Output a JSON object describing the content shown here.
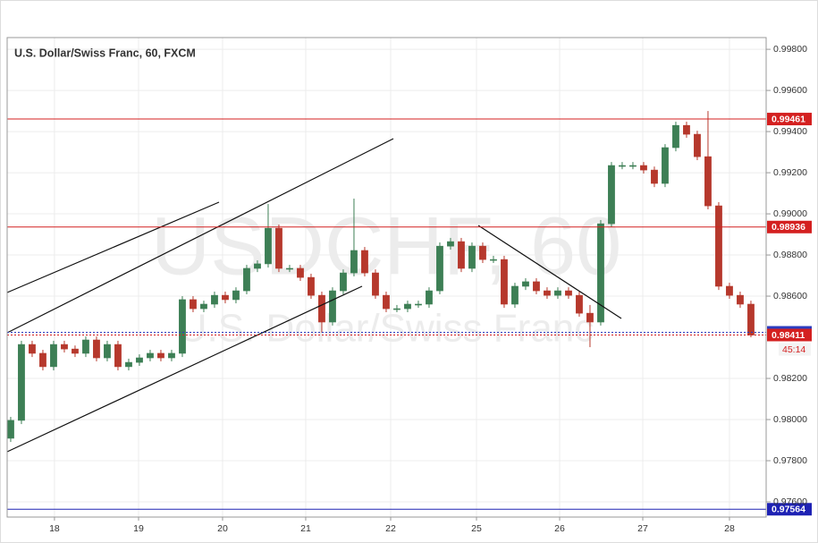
{
  "chart_data": {
    "type": "candlestick",
    "title": "U.S. Dollar/Swiss Franc, 60, FXCM",
    "watermark": {
      "symbol": "USDCHF, 60",
      "name": "U.S. Dollar/Swiss Franc"
    },
    "up_color": "#3d7f55",
    "down_color": "#b6382c",
    "x": [
      0,
      1,
      2,
      3,
      4,
      5,
      6,
      7,
      8,
      9,
      10,
      11,
      12,
      13,
      14,
      15,
      16,
      17,
      18,
      19,
      20,
      21,
      22,
      23,
      24,
      25,
      26,
      27,
      28,
      29,
      30,
      31,
      32,
      33,
      34,
      35,
      36,
      37,
      38,
      39,
      40,
      41,
      42,
      43,
      44,
      45,
      46,
      47,
      48,
      49,
      50,
      51,
      52,
      53,
      54,
      55,
      56,
      57,
      58,
      59,
      60,
      61,
      62,
      63,
      64,
      65,
      66,
      67,
      68,
      69
    ],
    "open": [
      0.97909,
      0.97996,
      0.98365,
      0.98322,
      0.98257,
      0.98365,
      0.98343,
      0.98322,
      0.98387,
      0.983,
      0.98365,
      0.98257,
      0.98278,
      0.983,
      0.98322,
      0.983,
      0.98322,
      0.98583,
      0.98539,
      0.98561,
      0.98604,
      0.98583,
      0.98626,
      0.98735,
      0.98757,
      0.9893,
      0.98735,
      0.98735,
      0.98691,
      0.98604,
      0.98474,
      0.98626,
      0.98713,
      0.98822,
      0.98713,
      0.98604,
      0.98539,
      0.98539,
      0.98561,
      0.98561,
      0.98626,
      0.98843,
      0.98865,
      0.98735,
      0.98843,
      0.98778,
      0.98778,
      0.98561,
      0.98648,
      0.9867,
      0.98626,
      0.98604,
      0.98626,
      0.98604,
      0.98517,
      0.98474,
      0.98952,
      0.99235,
      0.99235,
      0.99235,
      0.99213,
      0.99148,
      0.99322,
      0.9943,
      0.99387,
      0.99278,
      0.99039,
      0.98648,
      0.98604,
      0.98561
    ],
    "high": [
      0.98013,
      0.98383,
      0.98383,
      0.98339,
      0.98383,
      0.98383,
      0.9836,
      0.98404,
      0.98404,
      0.98383,
      0.98383,
      0.98296,
      0.98317,
      0.98339,
      0.98339,
      0.98339,
      0.986,
      0.986,
      0.98578,
      0.98622,
      0.98622,
      0.98643,
      0.98752,
      0.98774,
      0.99048,
      0.98948,
      0.98752,
      0.98752,
      0.98709,
      0.98622,
      0.98643,
      0.9873,
      0.99074,
      0.98839,
      0.9873,
      0.98622,
      0.98557,
      0.98578,
      0.98578,
      0.98643,
      0.98861,
      0.98883,
      0.98883,
      0.98861,
      0.98861,
      0.98796,
      0.98796,
      0.98665,
      0.98687,
      0.98687,
      0.98643,
      0.98643,
      0.98643,
      0.98622,
      0.98557,
      0.9897,
      0.99252,
      0.99252,
      0.99252,
      0.99252,
      0.9923,
      0.99339,
      0.99448,
      0.99448,
      0.99404,
      0.995,
      0.99057,
      0.98665,
      0.98622,
      0.98578
    ],
    "low": [
      0.97891,
      0.97978,
      0.98304,
      0.98239,
      0.98239,
      0.98326,
      0.98304,
      0.98304,
      0.98283,
      0.98283,
      0.98239,
      0.98239,
      0.98261,
      0.98283,
      0.98283,
      0.98283,
      0.98304,
      0.98522,
      0.98522,
      0.98543,
      0.98565,
      0.98565,
      0.98609,
      0.98717,
      0.98739,
      0.98717,
      0.98717,
      0.98674,
      0.98587,
      0.98422,
      0.98457,
      0.98609,
      0.98696,
      0.98696,
      0.98587,
      0.98522,
      0.98522,
      0.98522,
      0.98543,
      0.98543,
      0.98609,
      0.98826,
      0.98717,
      0.98717,
      0.98761,
      0.98761,
      0.98543,
      0.98543,
      0.9863,
      0.98609,
      0.98587,
      0.98587,
      0.98587,
      0.985,
      0.98352,
      0.98457,
      0.98935,
      0.99217,
      0.99217,
      0.99196,
      0.9913,
      0.9913,
      0.99304,
      0.9937,
      0.99261,
      0.99022,
      0.9863,
      0.98587,
      0.98543,
      0.984
    ],
    "close": [
      0.97996,
      0.98365,
      0.98322,
      0.98257,
      0.98365,
      0.98343,
      0.98322,
      0.98387,
      0.983,
      0.98365,
      0.98257,
      0.98278,
      0.983,
      0.98322,
      0.983,
      0.98322,
      0.98583,
      0.98539,
      0.98561,
      0.98604,
      0.98583,
      0.98626,
      0.98735,
      0.98757,
      0.9893,
      0.98735,
      0.98735,
      0.98691,
      0.98604,
      0.98474,
      0.98626,
      0.98713,
      0.98822,
      0.98713,
      0.98604,
      0.98539,
      0.98539,
      0.98561,
      0.98561,
      0.98626,
      0.98843,
      0.98865,
      0.98735,
      0.98843,
      0.98778,
      0.98778,
      0.98561,
      0.98648,
      0.9867,
      0.98626,
      0.98604,
      0.98626,
      0.98604,
      0.98517,
      0.98474,
      0.98952,
      0.99235,
      0.99235,
      0.99235,
      0.99213,
      0.99148,
      0.99322,
      0.9943,
      0.99387,
      0.99278,
      0.99039,
      0.98648,
      0.98604,
      0.98561,
      0.98411
    ],
    "xlim": [
      -0.33,
      70.42
    ],
    "xticks": [
      {
        "value": 4.08,
        "label": "18"
      },
      {
        "value": 11.92,
        "label": "19"
      },
      {
        "value": 19.75,
        "label": "20"
      },
      {
        "value": 27.5,
        "label": "21"
      },
      {
        "value": 35.42,
        "label": "22"
      },
      {
        "value": 43.42,
        "label": "25"
      },
      {
        "value": 51.17,
        "label": "26"
      },
      {
        "value": 58.92,
        "label": "27"
      },
      {
        "value": 67,
        "label": "28"
      }
    ],
    "ylim": [
      0.97526,
      0.99857
    ],
    "yticks": [
      {
        "value": 0.998,
        "label": "0.99800"
      },
      {
        "value": 0.996,
        "label": "0.99600"
      },
      {
        "value": 0.994,
        "label": "0.99400"
      },
      {
        "value": 0.992,
        "label": "0.99200"
      },
      {
        "value": 0.99,
        "label": "0.99000"
      },
      {
        "value": 0.988,
        "label": "0.98800"
      },
      {
        "value": 0.986,
        "label": "0.98600"
      },
      {
        "value": 0.982,
        "label": "0.98200"
      },
      {
        "value": 0.98,
        "label": "0.98000"
      },
      {
        "value": 0.978,
        "label": "0.97800"
      },
      {
        "value": 0.976,
        "label": "0.97600"
      }
    ],
    "grid": true,
    "levels": [
      {
        "value": 0.99461,
        "color": "#d42020",
        "style": "solid"
      },
      {
        "value": 0.98936,
        "color": "#d42020",
        "style": "solid"
      },
      {
        "value": 0.97564,
        "color": "#1e22b4",
        "style": "solid"
      },
      {
        "value": 0.98424,
        "color": "#2b3cc0",
        "style": "dotted"
      },
      {
        "value": 0.98411,
        "color": "#d42020",
        "style": "dotted"
      }
    ],
    "countdown": "45:14"
  }
}
